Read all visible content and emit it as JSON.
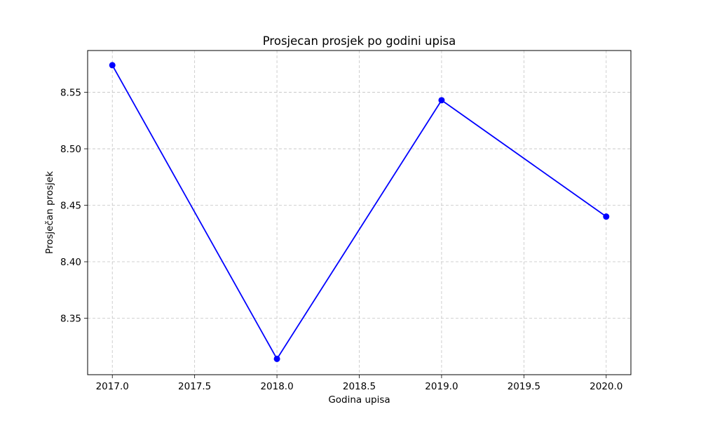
{
  "chart_data": {
    "type": "line",
    "title": "Prosjecan prosjek po godini upisa",
    "xlabel": "Godina upisa",
    "ylabel": "Prosječan prosjek",
    "x": [
      2017.0,
      2018.0,
      2019.0,
      2020.0
    ],
    "series": [
      {
        "values": [
          8.574,
          8.314,
          8.543,
          8.44
        ],
        "color": "#0000ff",
        "marker": "circle"
      }
    ],
    "xlim": [
      2016.85,
      2020.15
    ],
    "ylim": [
      8.3,
      8.587
    ],
    "xticks": [
      2017.0,
      2017.5,
      2018.0,
      2018.5,
      2019.0,
      2019.5,
      2020.0
    ],
    "xtick_labels": [
      "2017.0",
      "2017.5",
      "2018.0",
      "2018.5",
      "2019.0",
      "2019.5",
      "2020.0"
    ],
    "yticks": [
      8.35,
      8.4,
      8.45,
      8.5,
      8.55
    ],
    "ytick_labels": [
      "8.35",
      "8.40",
      "8.45",
      "8.50",
      "8.55"
    ],
    "grid": true,
    "grid_style": "dashed",
    "legend": false
  }
}
